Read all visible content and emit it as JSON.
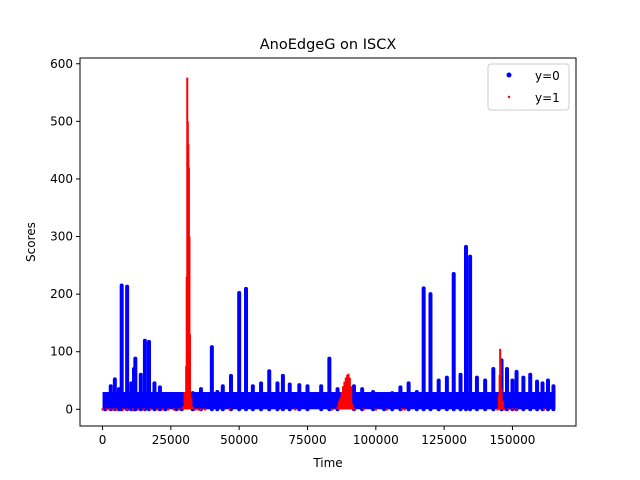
{
  "chart_data": {
    "type": "scatter",
    "title": "AnoEdgeG on ISCX",
    "xlabel": "Time",
    "ylabel": "Scores",
    "xlim": [
      -8250,
      173250
    ],
    "ylim": [
      -29,
      610
    ],
    "xticks": [
      0,
      25000,
      50000,
      75000,
      100000,
      125000,
      150000
    ],
    "xtick_labels": [
      "0",
      "25000",
      "50000",
      "75000",
      "100000",
      "125000",
      "150000"
    ],
    "yticks": [
      0,
      100,
      200,
      300,
      400,
      500,
      600
    ],
    "ytick_labels": [
      "0",
      "100",
      "200",
      "300",
      "400",
      "500",
      "600"
    ],
    "grid": false,
    "legend_position": "top-right",
    "colors": {
      "y0": "#0000ff",
      "y1": "#ff0000"
    },
    "series": [
      {
        "name": "y=0",
        "color": "#0000ff",
        "baseline_band": {
          "x": [
            0,
            165000
          ],
          "y_range": [
            0,
            30
          ]
        },
        "spikes": [
          [
            1000,
            25
          ],
          [
            3000,
            40
          ],
          [
            4500,
            52
          ],
          [
            6000,
            35
          ],
          [
            7000,
            215
          ],
          [
            9000,
            213
          ],
          [
            10500,
            45
          ],
          [
            11500,
            70
          ],
          [
            12000,
            88
          ],
          [
            14000,
            60
          ],
          [
            15500,
            119
          ],
          [
            17000,
            117
          ],
          [
            19000,
            45
          ],
          [
            21000,
            38
          ],
          [
            23000,
            25
          ],
          [
            27000,
            20
          ],
          [
            29000,
            25
          ],
          [
            33000,
            28
          ],
          [
            36000,
            35
          ],
          [
            40000,
            108
          ],
          [
            42000,
            30
          ],
          [
            44000,
            40
          ],
          [
            47000,
            58
          ],
          [
            50000,
            202
          ],
          [
            52500,
            209
          ],
          [
            55000,
            40
          ],
          [
            58000,
            45
          ],
          [
            61000,
            66
          ],
          [
            64000,
            45
          ],
          [
            66000,
            58
          ],
          [
            68500,
            43
          ],
          [
            72000,
            42
          ],
          [
            75000,
            40
          ],
          [
            80000,
            40
          ],
          [
            83000,
            88
          ],
          [
            86000,
            35
          ],
          [
            92000,
            40
          ],
          [
            95000,
            35
          ],
          [
            99000,
            30
          ],
          [
            103000,
            25
          ],
          [
            106000,
            28
          ],
          [
            109000,
            38
          ],
          [
            112000,
            45
          ],
          [
            115000,
            30
          ],
          [
            117500,
            210
          ],
          [
            120000,
            200
          ],
          [
            123000,
            50
          ],
          [
            126000,
            55
          ],
          [
            128500,
            235
          ],
          [
            131000,
            60
          ],
          [
            133000,
            282
          ],
          [
            134500,
            265
          ],
          [
            137000,
            55
          ],
          [
            140000,
            50
          ],
          [
            143000,
            70
          ],
          [
            146000,
            85
          ],
          [
            148000,
            70
          ],
          [
            150000,
            50
          ],
          [
            151500,
            65
          ],
          [
            154000,
            55
          ],
          [
            156500,
            60
          ],
          [
            159000,
            48
          ],
          [
            161000,
            45
          ],
          [
            163000,
            50
          ],
          [
            165000,
            40
          ]
        ]
      },
      {
        "name": "y=1",
        "color": "#ff0000",
        "points": [
          [
            0,
            0
          ],
          [
            1500,
            0
          ],
          [
            2500,
            0
          ],
          [
            4000,
            0
          ],
          [
            5000,
            0
          ],
          [
            7500,
            0
          ],
          [
            9000,
            0
          ],
          [
            11000,
            0
          ],
          [
            13000,
            0
          ],
          [
            15000,
            0
          ],
          [
            17500,
            0
          ],
          [
            20000,
            0
          ],
          [
            22000,
            0
          ],
          [
            24000,
            0
          ],
          [
            26000,
            0
          ],
          [
            28000,
            0
          ],
          [
            29500,
            5
          ],
          [
            30000,
            30
          ],
          [
            30600,
            75
          ],
          [
            30800,
            230
          ],
          [
            31000,
            576
          ],
          [
            31200,
            500
          ],
          [
            31400,
            460
          ],
          [
            31600,
            420
          ],
          [
            31800,
            300
          ],
          [
            32000,
            130
          ],
          [
            32500,
            20
          ],
          [
            33000,
            5
          ],
          [
            34000,
            0
          ],
          [
            35000,
            0
          ],
          [
            36000,
            0
          ],
          [
            37500,
            0
          ],
          [
            46500,
            0
          ],
          [
            70500,
            0
          ],
          [
            84000,
            0
          ],
          [
            86000,
            5
          ],
          [
            86500,
            15
          ],
          [
            87000,
            20
          ],
          [
            87500,
            30
          ],
          [
            88000,
            40
          ],
          [
            88500,
            48
          ],
          [
            89000,
            55
          ],
          [
            89500,
            60
          ],
          [
            90000,
            62
          ],
          [
            90500,
            55
          ],
          [
            91000,
            40
          ],
          [
            91500,
            10
          ],
          [
            92000,
            0
          ],
          [
            95500,
            0
          ],
          [
            100000,
            0
          ],
          [
            104000,
            0
          ],
          [
            109500,
            0
          ],
          [
            110500,
            0
          ],
          [
            144500,
            0
          ],
          [
            145000,
            25
          ],
          [
            145300,
            60
          ],
          [
            145500,
            105
          ],
          [
            145700,
            80
          ],
          [
            146000,
            35
          ],
          [
            146500,
            15
          ],
          [
            147000,
            0
          ],
          [
            148500,
            0
          ],
          [
            150000,
            0
          ],
          [
            151500,
            0
          ],
          [
            161500,
            0
          ]
        ]
      }
    ]
  }
}
